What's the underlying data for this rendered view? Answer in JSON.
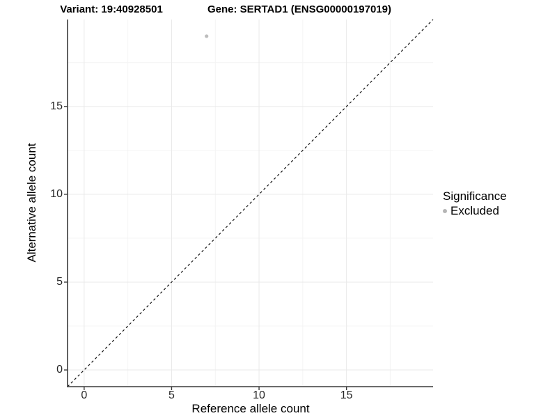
{
  "chart_data": {
    "type": "scatter",
    "title_variant": "Variant: 19:40928501",
    "title_gene": "Gene: SERTAD1 (ENSG00000197019)",
    "xlabel": "Reference allele count",
    "ylabel": "Alternative allele count",
    "xlim": [
      -0.95,
      19.95
    ],
    "ylim": [
      -0.95,
      19.95
    ],
    "x_major_ticks": [
      0,
      5,
      10,
      15
    ],
    "y_major_ticks": [
      0,
      5,
      10,
      15
    ],
    "x_minor_gridlines": [
      2.5,
      7.5,
      12.5,
      17.5
    ],
    "y_minor_gridlines": [
      2.5,
      7.5,
      12.5,
      17.5
    ],
    "grid": "major+minor",
    "legend": {
      "title": "Significance",
      "position": "right",
      "items": [
        {
          "label": "Excluded",
          "marker": "circle",
          "color": "#bdbdbd"
        }
      ]
    },
    "series": [
      {
        "name": "Excluded",
        "color": "#bdbdbd",
        "marker": "circle",
        "marker_radius_px": 2.6,
        "points": [
          {
            "x": 7,
            "y": 19
          }
        ]
      }
    ],
    "reference_line": {
      "kind": "identity",
      "slope": 1,
      "intercept": 0,
      "linestyle": "dashed",
      "color": "#111111"
    },
    "style": {
      "background": "#ffffff",
      "axis_color": "#3a3a3a",
      "major_grid_color": "#e9e9e9",
      "minor_grid_color": "#f4f4f4",
      "tick_color": "#3a3a3a",
      "tick_label_color": "#262626"
    }
  }
}
